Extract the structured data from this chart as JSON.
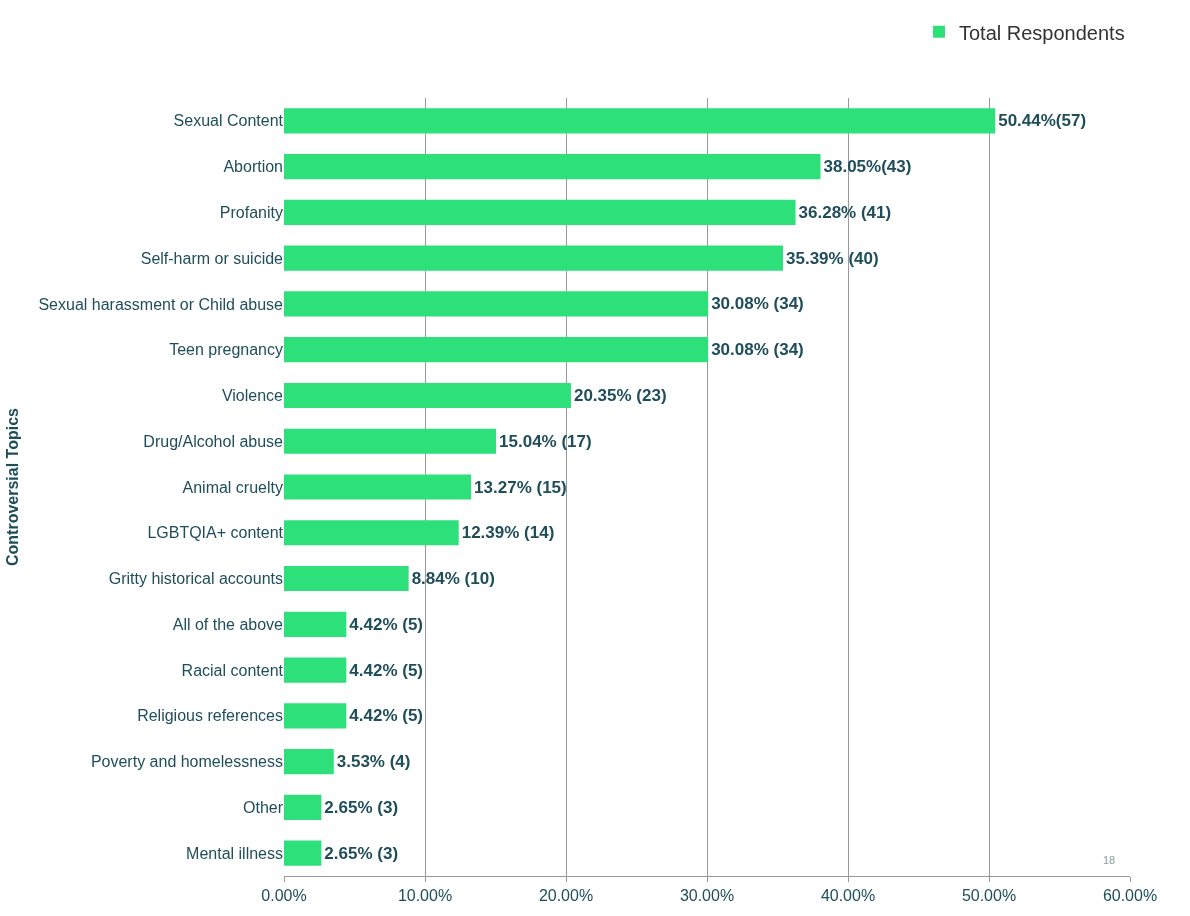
{
  "chart_data": {
    "type": "bar",
    "orientation": "horizontal",
    "ylabel": "Controversial Topics",
    "categories": [
      "Sexual Content",
      "Abortion",
      "Profanity",
      "Self-harm or suicide",
      "Sexual harassment or Child abuse",
      "Teen pregnancy",
      "Violence",
      "Drug/Alcohol abuse",
      "Animal cruelty",
      "LGBTQIA+ content",
      "Gritty historical accounts",
      "All of the above",
      "Racial content",
      "Religious references",
      "Poverty and homelessness",
      "Other",
      "Mental illness"
    ],
    "series": [
      {
        "name": "Total Respondents",
        "color": "#2ee07a",
        "values": [
          50.44,
          38.05,
          36.28,
          35.39,
          30.08,
          30.08,
          20.35,
          15.04,
          13.27,
          12.39,
          8.84,
          4.42,
          4.42,
          4.42,
          3.53,
          2.65,
          2.65
        ],
        "value_labels": [
          "50.44%(57)",
          "38.05%(43)",
          "36.28% (41)",
          "35.39% (40)",
          "30.08% (34)",
          "30.08% (34)",
          "20.35% (23)",
          "15.04% (17)",
          "13.27% (15)",
          "12.39% (14)",
          "8.84% (10)",
          "4.42% (5)",
          "4.42% (5)",
          "4.42% (5)",
          "3.53% (4)",
          "2.65% (3)",
          "2.65% (3)"
        ]
      }
    ],
    "xlim": [
      0,
      60
    ],
    "xticks": [
      {
        "value": 0,
        "label": "0.00%"
      },
      {
        "value": 10,
        "label": "10.00%"
      },
      {
        "value": 20,
        "label": "20.00%"
      },
      {
        "value": 30,
        "label": "30.00%"
      },
      {
        "value": 40,
        "label": "40.00%"
      },
      {
        "value": 50,
        "label": "50.00%"
      },
      {
        "value": 60,
        "label": "60.00%"
      }
    ],
    "grid": "x",
    "legend": "top right",
    "annotations": [
      "18"
    ]
  }
}
